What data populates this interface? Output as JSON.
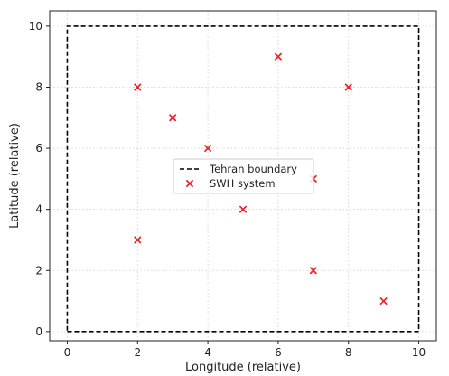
{
  "chart_data": {
    "type": "scatter",
    "title": "",
    "xlabel": "Longitude (relative)",
    "ylabel": "Latitude (relative)",
    "xlim": [
      -0.5,
      10.5
    ],
    "ylim": [
      -0.3,
      10.5
    ],
    "xticks": [
      0,
      2,
      4,
      6,
      8,
      10
    ],
    "yticks": [
      0,
      2,
      4,
      6,
      8,
      10
    ],
    "grid": true,
    "legend_position": "center",
    "series": [
      {
        "name": "Tehran boundary",
        "kind": "line",
        "style": "dashed",
        "color": "#000000",
        "x": [
          0,
          10,
          10,
          0,
          0
        ],
        "y": [
          0,
          0,
          10,
          10,
          0
        ]
      },
      {
        "name": "SWH system",
        "kind": "scatter",
        "marker": "x",
        "color": "#e8232b",
        "x": [
          2,
          3,
          4,
          6,
          8,
          7,
          5,
          2,
          7,
          9
        ],
        "y": [
          8,
          7,
          6,
          9,
          8,
          5,
          4,
          3,
          2,
          1
        ]
      }
    ]
  }
}
